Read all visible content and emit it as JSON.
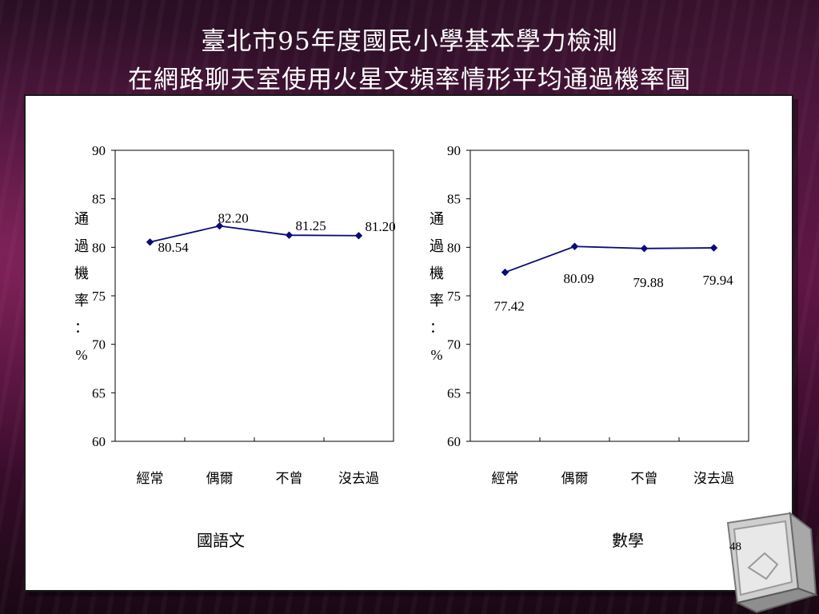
{
  "slide": {
    "title_line1": "臺北市95年度國民小學基本學力檢測",
    "title_line2": "在網路聊天室使用火星文頻率情形平均通過機率圖",
    "page_number": "48",
    "colors": {
      "line": "#0a0a7a",
      "marker": "#0a0a7a"
    }
  },
  "chart_data": [
    {
      "type": "line",
      "caption": "國語文",
      "categories": [
        "經常",
        "偶爾",
        "不曾",
        "沒去過"
      ],
      "values": [
        80.54,
        82.2,
        81.25,
        81.2
      ],
      "value_labels": [
        "80.54",
        "82.20",
        "81.25",
        "81.20"
      ],
      "ylabel": "通過機率：%",
      "ylim": [
        60,
        90
      ],
      "yticks": [
        "90",
        "85",
        "80",
        "75",
        "70",
        "65",
        "60"
      ],
      "grid": false,
      "legend": "none"
    },
    {
      "type": "line",
      "caption": "數學",
      "categories": [
        "經常",
        "偶爾",
        "不曾",
        "沒去過"
      ],
      "values": [
        77.42,
        80.09,
        79.88,
        79.94
      ],
      "value_labels": [
        "77.42",
        "80.09",
        "79.88",
        "79.94"
      ],
      "ylabel": "通過機率：%",
      "ylim": [
        60,
        90
      ],
      "yticks": [
        "90",
        "85",
        "80",
        "75",
        "70",
        "65",
        "60"
      ],
      "grid": false,
      "legend": "none"
    }
  ]
}
